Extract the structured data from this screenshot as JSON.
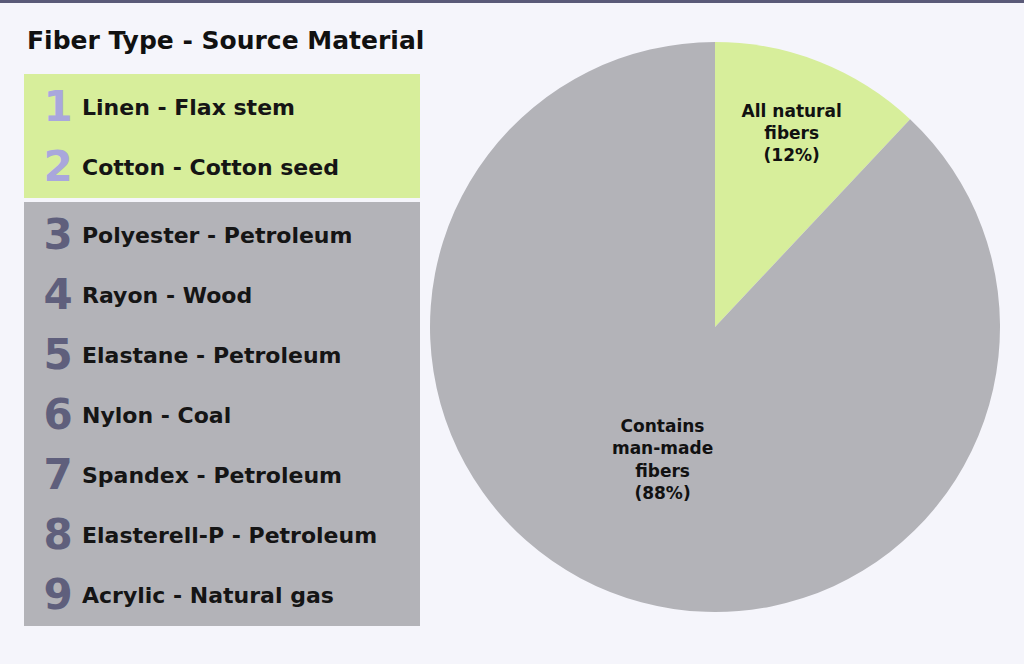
{
  "chart_data": {
    "type": "pie",
    "categories": [
      "All natural fibers",
      "Contains man-made fibers"
    ],
    "values": [
      12,
      88
    ],
    "value_labels": [
      "(12%)",
      "(88%)"
    ],
    "colors": [
      "#d7ee9b",
      "#b3b3b8"
    ],
    "data_labels": true
  },
  "fiber_list": {
    "title": "Fiber Type - Source Material",
    "groups": [
      {
        "color": "#d7ee9b",
        "items": [
          {
            "number": 1,
            "text": "Linen - Flax stem"
          },
          {
            "number": 2,
            "text": "Cotton - Cotton seed"
          }
        ]
      },
      {
        "color": "#b3b3b8",
        "items": [
          {
            "number": 3,
            "text": "Polyester - Petroleum"
          },
          {
            "number": 4,
            "text": "Rayon - Wood"
          },
          {
            "number": 5,
            "text": "Elastane - Petroleum"
          },
          {
            "number": 6,
            "text": "Nylon - Coal"
          },
          {
            "number": 7,
            "text": "Spandex - Petroleum"
          },
          {
            "number": 8,
            "text": "Elasterell-P - Petroleum"
          },
          {
            "number": 9,
            "text": "Acrylic - Natural gas"
          }
        ]
      }
    ]
  }
}
